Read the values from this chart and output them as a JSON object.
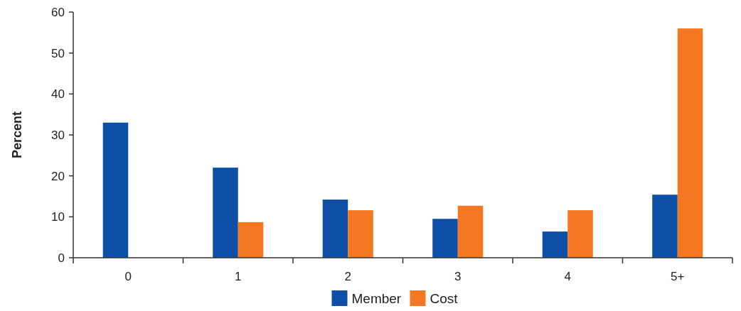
{
  "chart_data": {
    "type": "bar",
    "ylabel": "Percent",
    "categories": [
      "0",
      "1",
      "2",
      "3",
      "4",
      "5+"
    ],
    "series": [
      {
        "name": "Member",
        "color": "#0d4ea6",
        "values": [
          33,
          22,
          14.2,
          9.5,
          6.4,
          15.4
        ]
      },
      {
        "name": "Cost",
        "color": "#f47721",
        "values": [
          null,
          8.7,
          11.6,
          12.7,
          11.6,
          56
        ]
      }
    ],
    "ylim": [
      0,
      60
    ],
    "yticks": [
      0,
      10,
      20,
      30,
      40,
      50,
      60
    ],
    "grid": false,
    "legend": "bottom"
  }
}
